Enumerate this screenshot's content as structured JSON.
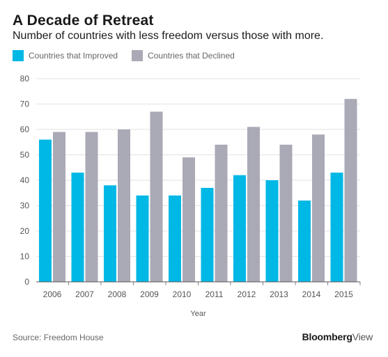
{
  "chart_data": {
    "type": "bar",
    "title": "A Decade of Retreat",
    "subtitle": "Number of countries with less freedom versus those with more.",
    "xlabel": "Year",
    "ylabel": "",
    "ylim": [
      0,
      80
    ],
    "yticks": [
      0,
      10,
      20,
      30,
      40,
      50,
      60,
      70,
      80
    ],
    "categories": [
      "2006",
      "2007",
      "2008",
      "2009",
      "2010",
      "2011",
      "2012",
      "2013",
      "2014",
      "2015"
    ],
    "series": [
      {
        "name": "Countries that Improved",
        "color": "#00b8e6",
        "values": [
          56,
          43,
          38,
          34,
          34,
          37,
          42,
          40,
          32,
          43
        ]
      },
      {
        "name": "Countries that Declined",
        "color": "#aaa9b6",
        "values": [
          59,
          59,
          60,
          67,
          49,
          54,
          61,
          54,
          58,
          72
        ]
      }
    ],
    "grid": true,
    "legend_position": "top-left"
  },
  "source": "Source: Freedom House",
  "logo": {
    "bold": "Bloomberg",
    "light": "View"
  }
}
